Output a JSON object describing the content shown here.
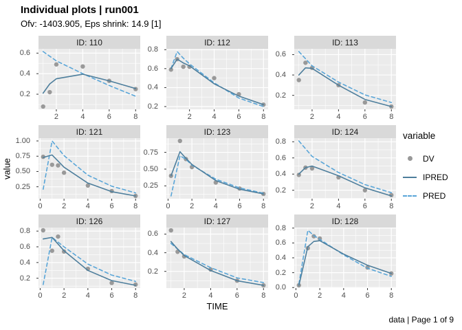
{
  "header": {
    "title": "Individual plots | run001",
    "subtitle": "Ofv: -1403.905, Eps shrink: 14.9 [1]"
  },
  "axes": {
    "x_label": "TIME",
    "y_label": "value"
  },
  "caption": "data | Page 1 of 9",
  "legend": {
    "title": "variable",
    "items": [
      {
        "label": "DV",
        "key": "point"
      },
      {
        "label": "IPRED",
        "key": "solid-line"
      },
      {
        "label": "PRED",
        "key": "dashed-line"
      }
    ]
  },
  "colors": {
    "dv": "#999999",
    "ipred": "#4d7e9c",
    "pred": "#58a5d8",
    "panel_bg": "#ebebeb",
    "strip_bg": "#d9d9d9",
    "grid": "#ffffff",
    "tick": "#333333",
    "tick_label": "#4d4d4d"
  },
  "chart_data": [
    {
      "type": "line",
      "facet": "ID: 110",
      "xlim": [
        0.65,
        8.35
      ],
      "ylim": [
        0.053,
        0.642
      ],
      "xticks": [
        2,
        4,
        6,
        8
      ],
      "xtick_labels": [
        "2",
        "4",
        "6",
        "8"
      ],
      "yticks": [
        0.2,
        0.4,
        0.6
      ],
      "ytick_labels": [
        "0.2",
        "0.4",
        "0.6"
      ],
      "series": [
        {
          "name": "DV",
          "kind": "scatter",
          "x": [
            1,
            1.5,
            2,
            4,
            6,
            8
          ],
          "y": [
            0.08,
            0.22,
            0.49,
            0.47,
            0.33,
            0.25
          ]
        },
        {
          "name": "IPRED",
          "kind": "line",
          "x": [
            1,
            1.5,
            2,
            4,
            6,
            8
          ],
          "y": [
            0.21,
            0.3,
            0.35,
            0.395,
            0.33,
            0.255
          ]
        },
        {
          "name": "PRED",
          "kind": "dashed",
          "x": [
            1,
            2,
            4,
            6,
            8
          ],
          "y": [
            0.615,
            0.525,
            0.4,
            0.285,
            0.18
          ]
        }
      ]
    },
    {
      "type": "line",
      "facet": "ID: 112",
      "xlim": [
        0.125,
        8.375
      ],
      "ylim": [
        0.171,
        0.809
      ],
      "xticks": [
        2,
        4,
        6,
        8
      ],
      "xtick_labels": [
        "2",
        "4",
        "6",
        "8"
      ],
      "yticks": [
        0.2,
        0.4,
        0.6,
        0.8
      ],
      "ytick_labels": [
        "0.2",
        "0.4",
        "0.6",
        "0.8"
      ],
      "series": [
        {
          "name": "DV",
          "kind": "scatter",
          "x": [
            0.5,
            1,
            1.5,
            2,
            4,
            6,
            8
          ],
          "y": [
            0.59,
            0.7,
            0.62,
            0.62,
            0.5,
            0.33,
            0.22
          ]
        },
        {
          "name": "IPRED",
          "kind": "line",
          "x": [
            0.5,
            1,
            1.5,
            2,
            4,
            6,
            8
          ],
          "y": [
            0.6,
            0.7,
            0.66,
            0.63,
            0.44,
            0.31,
            0.22
          ]
        },
        {
          "name": "PRED",
          "kind": "dashed",
          "x": [
            0.5,
            1,
            1.5,
            2,
            4,
            6,
            8
          ],
          "y": [
            0.6,
            0.78,
            0.71,
            0.65,
            0.45,
            0.29,
            0.2
          ]
        }
      ]
    },
    {
      "type": "line",
      "facet": "ID: 113",
      "xlim": [
        0.65,
        8.35
      ],
      "ylim": [
        0.063,
        0.657
      ],
      "xticks": [
        2,
        4,
        6,
        8
      ],
      "xtick_labels": [
        "2",
        "4",
        "6",
        "8"
      ],
      "yticks": [
        0.2,
        0.4,
        0.6
      ],
      "ytick_labels": [
        "0.2",
        "0.4",
        "0.6"
      ],
      "series": [
        {
          "name": "DV",
          "kind": "scatter",
          "x": [
            1,
            1.5,
            2,
            4,
            6,
            8
          ],
          "y": [
            0.35,
            0.52,
            0.47,
            0.3,
            0.13,
            0.09
          ]
        },
        {
          "name": "IPRED",
          "kind": "line",
          "x": [
            1,
            1.5,
            2,
            4,
            6,
            8
          ],
          "y": [
            0.4,
            0.47,
            0.465,
            0.3,
            0.16,
            0.09
          ]
        },
        {
          "name": "PRED",
          "kind": "dashed",
          "x": [
            1,
            2,
            4,
            6,
            8
          ],
          "y": [
            0.63,
            0.49,
            0.33,
            0.205,
            0.13
          ]
        }
      ]
    },
    {
      "type": "line",
      "facet": "ID: 121",
      "xlim": [
        -0.14,
        8.39
      ],
      "ylim": [
        0.055,
        1.045
      ],
      "xticks": [
        0,
        2,
        4,
        6,
        8
      ],
      "xtick_labels": [
        "0",
        "2",
        "4",
        "6",
        "8"
      ],
      "yticks": [
        0.25,
        0.5,
        0.75,
        1.0
      ],
      "ytick_labels": [
        "0.25",
        "0.50",
        "0.75",
        "1.00"
      ],
      "series": [
        {
          "name": "DV",
          "kind": "scatter",
          "x": [
            0.25,
            1,
            1.5,
            2,
            4,
            6,
            8
          ],
          "y": [
            0.74,
            0.61,
            0.6,
            0.48,
            0.27,
            0.18,
            0.1
          ]
        },
        {
          "name": "IPRED",
          "kind": "line",
          "x": [
            0.25,
            1,
            1.5,
            2,
            4,
            6,
            8
          ],
          "y": [
            0.73,
            0.77,
            0.67,
            0.57,
            0.31,
            0.17,
            0.1
          ]
        },
        {
          "name": "PRED",
          "kind": "dashed",
          "x": [
            0.25,
            1,
            1.5,
            2,
            4,
            6,
            8
          ],
          "y": [
            0.21,
            1.0,
            0.88,
            0.76,
            0.44,
            0.26,
            0.15
          ]
        }
      ]
    },
    {
      "type": "line",
      "facet": "ID: 123",
      "xlim": [
        -0.14,
        8.39
      ],
      "ylim": [
        0.059,
        0.961
      ],
      "xticks": [
        0,
        2,
        4,
        6,
        8
      ],
      "xtick_labels": [
        "0",
        "2",
        "4",
        "6",
        "8"
      ],
      "yticks": [
        0.25,
        0.5,
        0.75
      ],
      "ytick_labels": [
        "0.25",
        "0.50",
        "0.75"
      ],
      "series": [
        {
          "name": "DV",
          "kind": "scatter",
          "x": [
            0.25,
            1,
            1.5,
            2,
            4,
            6,
            8
          ],
          "y": [
            0.4,
            0.92,
            0.65,
            0.53,
            0.3,
            0.21,
            0.13
          ]
        },
        {
          "name": "IPRED",
          "kind": "line",
          "x": [
            0.25,
            1,
            1.5,
            2,
            4,
            6,
            8
          ],
          "y": [
            0.4,
            0.76,
            0.66,
            0.57,
            0.33,
            0.2,
            0.13
          ]
        },
        {
          "name": "PRED",
          "kind": "dashed",
          "x": [
            0.25,
            1,
            1.5,
            2,
            4,
            6,
            8
          ],
          "y": [
            0.1,
            0.7,
            0.645,
            0.56,
            0.35,
            0.22,
            0.14
          ]
        }
      ]
    },
    {
      "type": "line",
      "facet": "ID: 124",
      "xlim": [
        0.65,
        8.35
      ],
      "ylim": [
        0.096,
        0.844
      ],
      "xticks": [
        2,
        4,
        6,
        8
      ],
      "xtick_labels": [
        "2",
        "4",
        "6",
        "8"
      ],
      "yticks": [
        0.2,
        0.4,
        0.6,
        0.8
      ],
      "ytick_labels": [
        "0.2",
        "0.4",
        "0.6",
        "0.8"
      ],
      "series": [
        {
          "name": "DV",
          "kind": "scatter",
          "x": [
            1,
            1.5,
            2,
            4,
            6,
            8
          ],
          "y": [
            0.39,
            0.48,
            0.47,
            0.36,
            0.2,
            0.14
          ]
        },
        {
          "name": "IPRED",
          "kind": "line",
          "x": [
            1,
            1.5,
            2,
            4,
            6,
            8
          ],
          "y": [
            0.4,
            0.48,
            0.5,
            0.38,
            0.23,
            0.13
          ]
        },
        {
          "name": "PRED",
          "kind": "dashed",
          "x": [
            1,
            2,
            4,
            6,
            8
          ],
          "y": [
            0.81,
            0.62,
            0.42,
            0.27,
            0.17
          ]
        }
      ]
    },
    {
      "type": "line",
      "facet": "ID: 126",
      "xlim": [
        -0.14,
        8.39
      ],
      "ylim": [
        0.075,
        0.845
      ],
      "xticks": [
        0,
        2,
        4,
        6,
        8
      ],
      "xtick_labels": [
        "0",
        "2",
        "4",
        "6",
        "8"
      ],
      "yticks": [
        0.2,
        0.4,
        0.6,
        0.8
      ],
      "ytick_labels": [
        "0.2",
        "0.4",
        "0.6",
        "0.8"
      ],
      "series": [
        {
          "name": "DV",
          "kind": "scatter",
          "x": [
            0.25,
            1,
            1.5,
            2,
            4,
            6,
            8
          ],
          "y": [
            0.81,
            0.55,
            0.73,
            0.54,
            0.32,
            0.14,
            0.12
          ]
        },
        {
          "name": "IPRED",
          "kind": "line",
          "x": [
            0.25,
            1,
            2,
            4,
            6,
            8
          ],
          "y": [
            0.7,
            0.72,
            0.55,
            0.3,
            0.17,
            0.11
          ]
        },
        {
          "name": "PRED",
          "kind": "dashed",
          "x": [
            0.25,
            1,
            2,
            4,
            6,
            8
          ],
          "y": [
            0.12,
            0.72,
            0.6,
            0.38,
            0.24,
            0.16
          ]
        }
      ]
    },
    {
      "type": "line",
      "facet": "ID: 127",
      "xlim": [
        0.65,
        8.35
      ],
      "ylim": [
        0.021,
        0.67
      ],
      "xticks": [
        2,
        4,
        6,
        8
      ],
      "xtick_labels": [
        "2",
        "4",
        "6",
        "8"
      ],
      "yticks": [
        0.2,
        0.4,
        0.6
      ],
      "ytick_labels": [
        "0.2",
        "0.4",
        "0.6"
      ],
      "series": [
        {
          "name": "DV",
          "kind": "scatter",
          "x": [
            1,
            1.5,
            2,
            4,
            6,
            8
          ],
          "y": [
            0.64,
            0.41,
            0.36,
            0.22,
            0.1,
            0.05
          ]
        },
        {
          "name": "IPRED",
          "kind": "line",
          "x": [
            1,
            1.5,
            2,
            4,
            6,
            8
          ],
          "y": [
            0.52,
            0.44,
            0.37,
            0.21,
            0.1,
            0.05
          ]
        },
        {
          "name": "PRED",
          "kind": "dashed",
          "x": [
            1,
            2,
            4,
            6,
            8
          ],
          "y": [
            0.5,
            0.38,
            0.24,
            0.13,
            0.08
          ]
        }
      ]
    },
    {
      "type": "line",
      "facet": "ID: 128",
      "xlim": [
        -0.14,
        8.39
      ],
      "ylim": [
        -0.007,
        0.807
      ],
      "xticks": [
        0,
        2,
        4,
        6,
        8
      ],
      "xtick_labels": [
        "0",
        "2",
        "4",
        "6",
        "8"
      ],
      "yticks": [
        0.0,
        0.2,
        0.4,
        0.6,
        0.8
      ],
      "ytick_labels": [
        "0.0",
        "0.2",
        "0.4",
        "0.6",
        "0.8"
      ],
      "series": [
        {
          "name": "DV",
          "kind": "scatter",
          "x": [
            0.25,
            1,
            1.5,
            2,
            6,
            8
          ],
          "y": [
            0.03,
            0.53,
            0.69,
            0.66,
            0.27,
            0.19
          ]
        },
        {
          "name": "IPRED",
          "kind": "line",
          "x": [
            0.25,
            1,
            1.5,
            2,
            4,
            6,
            8
          ],
          "y": [
            0.03,
            0.55,
            0.62,
            0.63,
            0.45,
            0.3,
            0.19
          ]
        },
        {
          "name": "PRED",
          "kind": "dashed",
          "x": [
            0.25,
            1,
            1.5,
            2,
            4,
            6,
            8
          ],
          "y": [
            0.05,
            0.77,
            0.7,
            0.65,
            0.44,
            0.26,
            0.15
          ]
        }
      ]
    }
  ]
}
